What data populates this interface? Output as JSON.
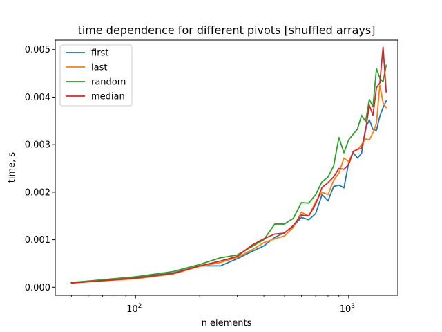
{
  "chart_data": {
    "type": "line",
    "title": "time dependence for different pivots [shuffled arrays]",
    "xlabel": "n elements",
    "ylabel": "time, s",
    "xscale": "log",
    "xlim": [
      42,
      1700
    ],
    "ylim": [
      -0.00017,
      0.0052
    ],
    "xticks": [
      {
        "value": 100,
        "base": "10",
        "exp": "2"
      },
      {
        "value": 1000,
        "base": "10",
        "exp": "3"
      }
    ],
    "yticks": [
      {
        "value": 0.0,
        "label": "0.000"
      },
      {
        "value": 0.001,
        "label": "0.001"
      },
      {
        "value": 0.002,
        "label": "0.002"
      },
      {
        "value": 0.003,
        "label": "0.003"
      },
      {
        "value": 0.004,
        "label": "0.004"
      },
      {
        "value": 0.005,
        "label": "0.005"
      }
    ],
    "grid": false,
    "legend_position": "top-left",
    "series": [
      {
        "name": "first",
        "color": "#1f77b4",
        "x": [
          50,
          100,
          150,
          200,
          250,
          300,
          350,
          400,
          450,
          500,
          550,
          600,
          650,
          700,
          750,
          800,
          850,
          900,
          950,
          1000,
          1050,
          1100,
          1150,
          1200,
          1250,
          1300,
          1350,
          1400,
          1450,
          1500
        ],
        "y": [
          9e-05,
          0.0002,
          0.0003,
          0.00045,
          0.00045,
          0.0006,
          0.00075,
          0.00087,
          0.00105,
          0.00115,
          0.00128,
          0.00147,
          0.00142,
          0.00155,
          0.00195,
          0.00182,
          0.00212,
          0.00215,
          0.00209,
          0.00262,
          0.00283,
          0.00272,
          0.00282,
          0.00335,
          0.00352,
          0.00332,
          0.0033,
          0.0036,
          0.00378,
          0.00392
        ]
      },
      {
        "name": "last",
        "color": "#ff7f0e",
        "x": [
          50,
          100,
          150,
          200,
          250,
          300,
          350,
          400,
          450,
          500,
          550,
          600,
          650,
          700,
          750,
          800,
          850,
          900,
          950,
          1000,
          1050,
          1100,
          1150,
          1200,
          1250,
          1300,
          1350,
          1400,
          1450,
          1500
        ],
        "y": [
          9e-05,
          0.00018,
          0.00028,
          0.00044,
          0.00052,
          0.00063,
          0.00078,
          0.00094,
          0.00102,
          0.00108,
          0.00126,
          0.00158,
          0.0015,
          0.0018,
          0.002,
          0.00195,
          0.00225,
          0.0024,
          0.00272,
          0.00264,
          0.00285,
          0.0029,
          0.003,
          0.00312,
          0.0031,
          0.00325,
          0.00345,
          0.00425,
          0.00388,
          0.00378
        ]
      },
      {
        "name": "random",
        "color": "#2ca02c",
        "x": [
          50,
          100,
          150,
          200,
          250,
          300,
          350,
          400,
          450,
          500,
          550,
          600,
          650,
          700,
          750,
          800,
          850,
          900,
          950,
          1000,
          1050,
          1100,
          1150,
          1200,
          1250,
          1300,
          1350,
          1400,
          1450,
          1500
        ],
        "y": [
          0.0001,
          0.00022,
          0.00033,
          0.00048,
          0.00062,
          0.00068,
          0.00085,
          0.001,
          0.00133,
          0.00133,
          0.00145,
          0.00178,
          0.00177,
          0.00195,
          0.00222,
          0.00232,
          0.00255,
          0.00315,
          0.00283,
          0.0031,
          0.00322,
          0.00333,
          0.00362,
          0.00349,
          0.00395,
          0.0038,
          0.0046,
          0.0044,
          0.00432,
          0.00467
        ]
      },
      {
        "name": "median",
        "color": "#d62728",
        "x": [
          50,
          100,
          150,
          200,
          250,
          300,
          350,
          400,
          450,
          500,
          550,
          600,
          650,
          700,
          750,
          800,
          850,
          900,
          950,
          1000,
          1050,
          1100,
          1150,
          1200,
          1250,
          1300,
          1350,
          1400,
          1450,
          1500
        ],
        "y": [
          9e-05,
          0.00019,
          0.00029,
          0.00045,
          0.00055,
          0.00065,
          0.00088,
          0.00102,
          0.00112,
          0.00114,
          0.0013,
          0.00152,
          0.0015,
          0.00175,
          0.0021,
          0.0022,
          0.00232,
          0.0025,
          0.00248,
          0.00258,
          0.00286,
          0.0029,
          0.00292,
          0.0033,
          0.00383,
          0.00362,
          0.0042,
          0.0043,
          0.00505,
          0.00411
        ]
      }
    ]
  }
}
